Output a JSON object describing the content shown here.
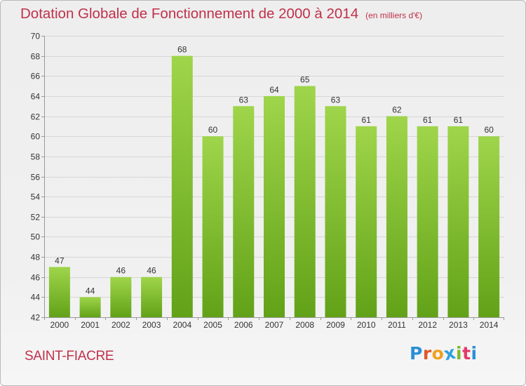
{
  "header": {
    "title": "Dotation Globale de Fonctionnement de 2000 à 2014",
    "unit": "(en milliers d'€)"
  },
  "footer": {
    "commune": "SAINT-FIACRE",
    "brand_letters": [
      "P",
      "r",
      "o",
      "x",
      "i",
      "t",
      "i"
    ],
    "brand_colors": [
      "#2b8fd6",
      "#e0572a",
      "#f0a020",
      "#2fa0dc",
      "#7fba2b",
      "#e23a6b",
      "#2b8fd6"
    ]
  },
  "colors": {
    "bar_top": "#9fd54a",
    "bar_bottom": "#62a218",
    "grid": "#d6d6d6",
    "axis": "#999999"
  },
  "chart_data": {
    "type": "bar",
    "categories": [
      "2000",
      "2001",
      "2002",
      "2003",
      "2004",
      "2005",
      "2006",
      "2007",
      "2008",
      "2009",
      "2010",
      "2011",
      "2012",
      "2013",
      "2014"
    ],
    "values": [
      47,
      44,
      46,
      46,
      68,
      60,
      63,
      64,
      65,
      63,
      61,
      62,
      61,
      61,
      60
    ],
    "ylim": [
      42,
      70
    ],
    "yticks": [
      42,
      44,
      46,
      48,
      50,
      52,
      54,
      56,
      58,
      60,
      62,
      64,
      66,
      68,
      70
    ],
    "grid": true,
    "xlabel": "",
    "ylabel": ""
  }
}
